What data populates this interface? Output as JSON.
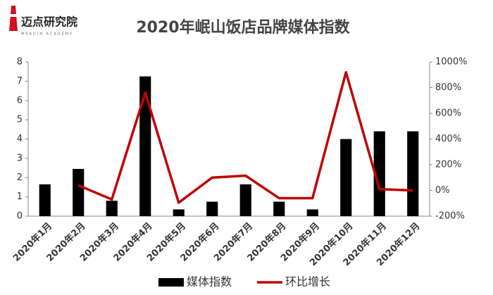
{
  "logo": {
    "name": "迈点研究院",
    "subtitle": "MEADIN ACADEMY"
  },
  "chart_data": {
    "type": "bar",
    "title": "2020年岷山饭店品牌媒体指数",
    "categories": [
      "2020年1月",
      "2020年2月",
      "2020年3月",
      "2020年4月",
      "2020年5月",
      "2020年6月",
      "2020年7月",
      "2020年8月",
      "2020年9月",
      "2020年10月",
      "2020年11月",
      "2020年12月"
    ],
    "series": [
      {
        "name": "媒体指数",
        "color": "#000000",
        "values": [
          1.65,
          2.45,
          0.8,
          7.25,
          0.35,
          0.75,
          1.65,
          0.75,
          0.35,
          4.0,
          4.4,
          4.4
        ]
      },
      {
        "name": "环比增长",
        "color": "#c00000",
        "type": "line",
        "axis": "y2",
        "values": [
          null,
          40,
          -70,
          760,
          -95,
          100,
          115,
          -60,
          -60,
          920,
          10,
          0
        ]
      }
    ],
    "ylim": [
      0,
      8
    ],
    "yticks": [
      0,
      1,
      2,
      3,
      4,
      5,
      6,
      7,
      8
    ],
    "y2lim": [
      -200,
      1000
    ],
    "y2ticks": [
      {
        "value": -200,
        "label": "-200%"
      },
      {
        "value": 0,
        "label": "0%"
      },
      {
        "value": 200,
        "label": "200%"
      },
      {
        "value": 400,
        "label": "400%"
      },
      {
        "value": 600,
        "label": "600%"
      },
      {
        "value": 800,
        "label": "800%"
      },
      {
        "value": 1000,
        "label": "1000%"
      }
    ],
    "legend": "bottom"
  }
}
